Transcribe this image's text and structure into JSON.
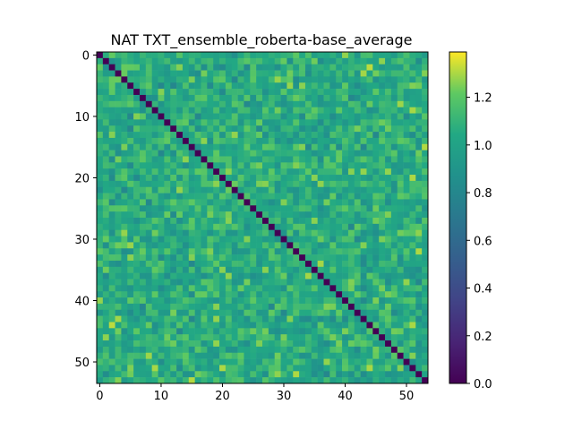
{
  "chart_data": {
    "type": "heatmap",
    "title": "NAT TXT_ensemble_roberta-base_average",
    "xlabel": "",
    "ylabel": "",
    "n_rows": 54,
    "n_cols": 54,
    "xlim": [
      -0.5,
      53.5
    ],
    "ylim": [
      53.5,
      -0.5
    ],
    "xticks": [
      0,
      10,
      20,
      30,
      40,
      50
    ],
    "yticks": [
      0,
      10,
      20,
      30,
      40,
      50
    ],
    "diagonal_value": 0.0,
    "off_diagonal_range": [
      0.8,
      1.39
    ],
    "off_diagonal_typical": 1.05,
    "colorbar": {
      "label": "",
      "colormap": "viridis",
      "vmin": 0.0,
      "vmax": 1.39,
      "ticks": [
        0.0,
        0.2,
        0.4,
        0.6,
        0.8,
        1.0,
        1.2
      ],
      "tick_labels": [
        "0.0",
        "0.2",
        "0.4",
        "0.6",
        "0.8",
        "1.0",
        "1.2"
      ]
    },
    "grid": false,
    "legend": "none"
  }
}
